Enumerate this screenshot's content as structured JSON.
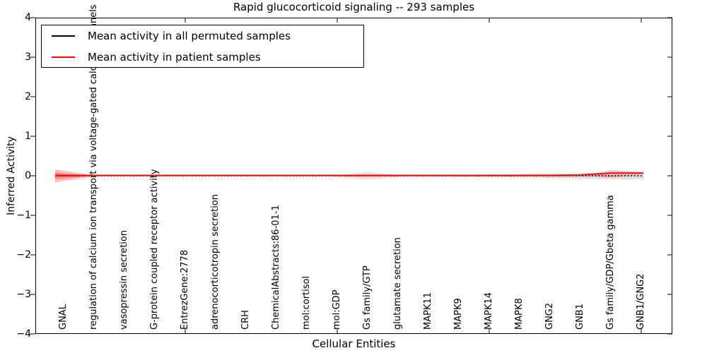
{
  "chart_data": {
    "type": "line",
    "title": "Rapid glucocorticoid signaling -- 293 samples",
    "xlabel": "Cellular Entities",
    "ylabel": "Inferred Activity",
    "ylim": [
      -4,
      4
    ],
    "yticks": [
      4,
      3,
      2,
      1,
      0,
      -1,
      -2,
      -3,
      -4
    ],
    "ytick_labels": [
      "4",
      "3",
      "2",
      "1",
      "0",
      "−1",
      "−2",
      "−3",
      "−4"
    ],
    "x_major_tick_indices": [
      4,
      9,
      14,
      19
    ],
    "grid": false,
    "legend_position": "upper left",
    "categories": [
      "GNAL",
      "regulation of calcium ion transport via voltage-gated calcium channels",
      "vasopressin secretion",
      "G-protein coupled receptor activity",
      "EntrezGene:2778",
      "adrenocorticotropin secretion",
      "CRH",
      "ChemicalAbstracts:86-01-1",
      "mol:cortisol",
      "mol:GDP",
      "Gs family/GTP",
      "glutamate secretion",
      "MAPK11",
      "MAPK9",
      "MAPK14",
      "MAPK8",
      "GNG2",
      "GNB1",
      "Gs family/GDP/Gbeta gamma",
      "GNB1/GNG2"
    ],
    "series": [
      {
        "name": "Mean activity in all permuted samples",
        "color": "#000000",
        "style": "dotted",
        "values": [
          0,
          0,
          0,
          0,
          0,
          0,
          0,
          0,
          0,
          0,
          0,
          0,
          0,
          0,
          0,
          0,
          0,
          0,
          0,
          0
        ]
      },
      {
        "name": "Mean activity in patient samples",
        "color": "#ff0000",
        "style": "solid",
        "values": [
          0.01,
          0.01,
          0.01,
          0.01,
          0.01,
          0.01,
          0.01,
          0.01,
          0.01,
          0.01,
          0.01,
          0.01,
          0.01,
          0.01,
          0.01,
          0.01,
          0.01,
          0.02,
          0.07,
          0.07
        ]
      }
    ],
    "bands": [
      {
        "name": "patient-spread-left",
        "color": "rgba(255,0,0,0.25)",
        "points": [
          [
            -0.28,
            0,
            0.16
          ],
          [
            1.1,
            0,
            0.005
          ]
        ]
      },
      {
        "name": "patient-spread-left-inner",
        "color": "rgba(255,0,0,0.30)",
        "points": [
          [
            -0.28,
            0,
            0.085
          ],
          [
            0.8,
            0,
            0.004
          ]
        ]
      },
      {
        "name": "patient-spread-mid",
        "color": "rgba(255,0,0,0.15)",
        "points": [
          [
            8.8,
            0,
            0.004
          ],
          [
            9.4,
            0,
            0.05
          ],
          [
            10,
            0,
            0.095
          ],
          [
            10.6,
            0,
            0.05
          ],
          [
            11.3,
            0,
            0.004
          ]
        ]
      },
      {
        "name": "permuted-spread",
        "color": "rgba(0,0,0,0.13)",
        "points": [
          [
            10.9,
            0,
            0.012
          ],
          [
            12,
            0,
            0.02
          ],
          [
            14,
            0,
            0.034
          ],
          [
            16,
            0,
            0.055
          ],
          [
            17.5,
            0,
            0.075
          ],
          [
            18.5,
            0,
            0.085
          ],
          [
            19.07,
            0,
            0.078
          ]
        ]
      },
      {
        "name": "patient-spread-right",
        "color": "rgba(255,0,0,0.22)",
        "points": [
          [
            16.9,
            0.01,
            0.004
          ],
          [
            17.6,
            0.03,
            0.05
          ],
          [
            18,
            0.05,
            0.1
          ],
          [
            18.7,
            0.06,
            0.05
          ],
          [
            19.07,
            0.065,
            0.028
          ]
        ]
      }
    ]
  }
}
